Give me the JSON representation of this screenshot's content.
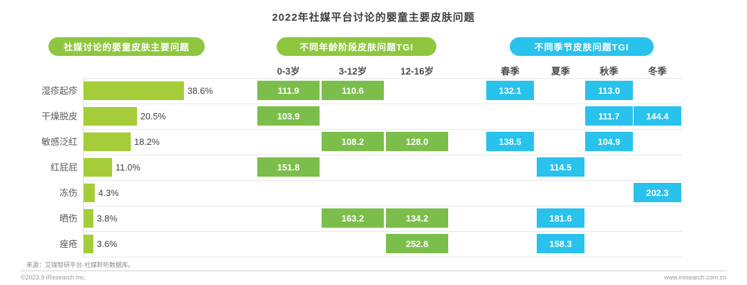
{
  "title": "2022年社媒平台讨论的婴童主要皮肤问题",
  "section_pills": {
    "problems": "社媒讨论的婴童皮肤主要问题",
    "age_tgi": "不同年龄阶段皮肤问题TGI",
    "season_tgi": "不同季节皮肤问题TGI"
  },
  "chart_data": {
    "type": "bar",
    "title": "2022年社媒平台讨论的婴童主要皮肤问题",
    "orientation": "horizontal",
    "categories": [
      "湿疹起疹",
      "干燥脱皮",
      "敏感泛红",
      "红屁屁",
      "冻伤",
      "晒伤",
      "痤疮"
    ],
    "values": [
      38.6,
      20.5,
      18.2,
      11.0,
      4.3,
      3.8,
      3.6
    ],
    "value_labels": [
      "38.6%",
      "20.5%",
      "18.2%",
      "11.0%",
      "4.3%",
      "3.8%",
      "3.6%"
    ],
    "unit": "%",
    "age_columns": [
      "0-3岁",
      "3-12岁",
      "12-16岁"
    ],
    "age_tgi": [
      [
        "111.9",
        "110.6",
        null
      ],
      [
        "103.9",
        null,
        null
      ],
      [
        null,
        "108.2",
        "128.0"
      ],
      [
        "151.8",
        null,
        null
      ],
      [
        null,
        null,
        null
      ],
      [
        null,
        "163.2",
        "134.2"
      ],
      [
        null,
        null,
        "252.8"
      ]
    ],
    "season_columns": [
      "春季",
      "夏季",
      "秋季",
      "冬季"
    ],
    "season_tgi": [
      [
        "132.1",
        null,
        "113.0",
        null
      ],
      [
        null,
        null,
        "111.7",
        "144.4"
      ],
      [
        "138.5",
        null,
        "104.9",
        null
      ],
      [
        null,
        "114.5",
        null,
        null
      ],
      [
        null,
        null,
        null,
        "202.3"
      ],
      [
        null,
        "181.6",
        null,
        null
      ],
      [
        null,
        "158.3",
        null,
        null
      ]
    ]
  },
  "colors": {
    "bar_green": "#a5cd39",
    "box_green": "#7cbe4b",
    "pill_green": "#8fc640",
    "cyan": "#29c2ec"
  },
  "footer": {
    "source": "来源：艾瑞智研平台-社媒聆听数据库。",
    "copyright": "©2023.9 iResearch Inc.",
    "website": "www.iresearch.com.cn"
  }
}
